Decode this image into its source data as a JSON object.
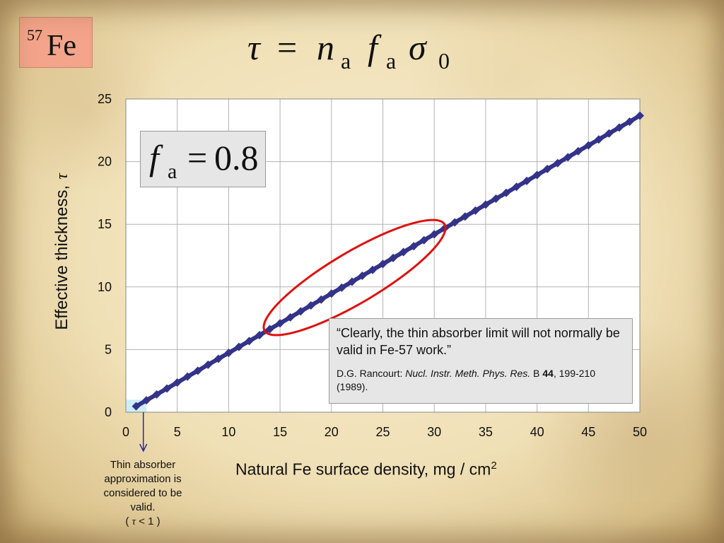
{
  "badge": {
    "mass_number": "57",
    "element": "Fe"
  },
  "formula": {
    "lhs": "τ",
    "eq": "=",
    "n": "n",
    "n_sub": "a",
    "f": "f",
    "f_sub": "a",
    "sigma": "σ",
    "sigma_sub": "0"
  },
  "fa_box": {
    "f": "f",
    "sub": "a",
    "eq": "=",
    "value": "0.8"
  },
  "quote": {
    "text": "“Clearly, the thin absorber limit will not normally be valid in Fe-57 work.”",
    "author": "D.G. Rancourt: ",
    "journal": "Nucl. Instr. Meth. Phys. Res.",
    "series": " B ",
    "volume": "44",
    "pages": ", 199-210 (1989)."
  },
  "note": {
    "line1": "Thin absorber approximation is considered to be valid.",
    "open": "( ",
    "tau": "τ",
    "rest": " < 1 )"
  },
  "chart_data": {
    "type": "line",
    "xlabel": "Natural Fe surface density, mg / cm",
    "xlabel_sup": "2",
    "ylabel": "Effective thickness,",
    "ylabel_symbol": "τ",
    "xlim": [
      0,
      50
    ],
    "ylim": [
      0,
      25
    ],
    "x_ticks": [
      0,
      5,
      10,
      15,
      20,
      25,
      30,
      35,
      40,
      45,
      50
    ],
    "y_ticks": [
      0,
      5,
      10,
      15,
      20,
      25
    ],
    "grid": true,
    "series": [
      {
        "color": "#33338a",
        "marker": "diamond",
        "x": [
          1,
          2,
          3,
          4,
          5,
          6,
          7,
          8,
          9,
          10,
          11,
          12,
          13,
          14,
          15,
          16,
          17,
          18,
          19,
          20,
          21,
          22,
          23,
          24,
          25,
          26,
          27,
          28,
          29,
          30,
          31,
          32,
          33,
          34,
          35,
          36,
          37,
          38,
          39,
          40,
          41,
          42,
          43,
          44,
          45,
          46,
          47,
          48,
          49,
          50
        ],
        "y": [
          0.47,
          0.95,
          1.42,
          1.89,
          2.37,
          2.84,
          3.31,
          3.79,
          4.26,
          4.73,
          5.21,
          5.68,
          6.15,
          6.63,
          7.1,
          7.57,
          8.05,
          8.52,
          8.99,
          9.47,
          9.94,
          10.41,
          10.89,
          11.36,
          11.83,
          12.31,
          12.78,
          13.25,
          13.73,
          14.2,
          14.67,
          15.15,
          15.62,
          16.09,
          16.57,
          17.04,
          17.51,
          17.99,
          18.46,
          18.93,
          19.41,
          19.88,
          20.35,
          20.83,
          21.3,
          21.77,
          22.25,
          22.72,
          23.19,
          23.67
        ]
      }
    ],
    "highlight_region": {
      "x": [
        0,
        2
      ],
      "y": [
        0,
        1
      ],
      "color": "#cdeef6"
    },
    "ellipse_annotation": {
      "x_range": [
        13.5,
        31
      ],
      "y_range": [
        6.5,
        15
      ],
      "color": "#e01010"
    },
    "arrow_annotation": {
      "x": 1.7,
      "from_y": 0,
      "color": "#2a2a9a"
    }
  }
}
